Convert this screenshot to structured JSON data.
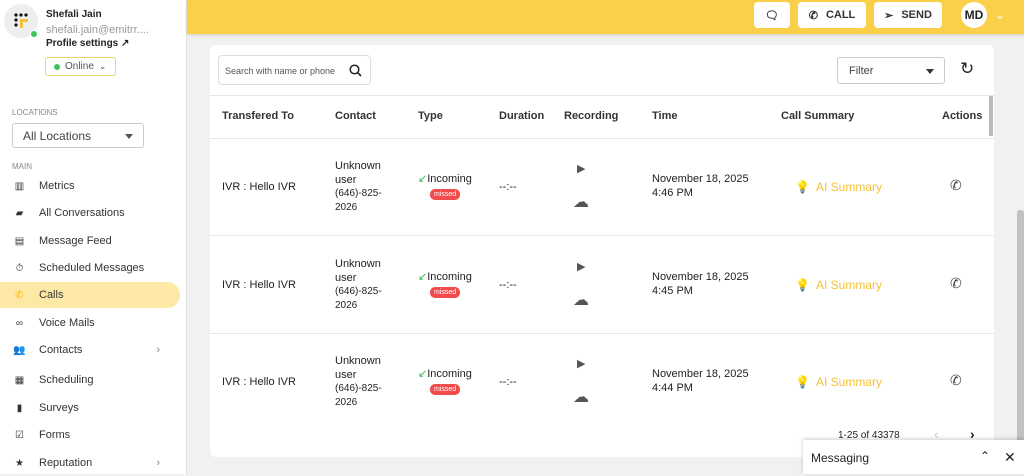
{
  "user": {
    "name": "Shefali Jain",
    "email": "shefali.jain@emitrr....",
    "profile_settings": "Profile settings",
    "status": "Online"
  },
  "sidebar": {
    "locations_label": "LOCATIONS",
    "location_value": "All Locations",
    "main_label": "MAIN",
    "items": [
      {
        "label": "Metrics",
        "icon": "bar-chart-icon"
      },
      {
        "label": "All Conversations",
        "icon": "chat-icon"
      },
      {
        "label": "Message Feed",
        "icon": "message-icon"
      },
      {
        "label": "Scheduled Messages",
        "icon": "timer-icon"
      },
      {
        "label": "Calls",
        "icon": "phone-icon",
        "active": true
      },
      {
        "label": "Voice Mails",
        "icon": "voicemail-icon"
      },
      {
        "label": "Contacts",
        "icon": "people-icon",
        "chevron": true
      },
      {
        "label": "Scheduling",
        "icon": "calendar-icon"
      },
      {
        "label": "Surveys",
        "icon": "document-icon"
      },
      {
        "label": "Forms",
        "icon": "checklist-icon"
      },
      {
        "label": "Reputation",
        "icon": "star-icon",
        "chevron": true
      }
    ]
  },
  "header": {
    "call": "CALL",
    "send": "SEND",
    "avatar": "MD",
    "accent": "#fad04b"
  },
  "toolbar": {
    "search_placeholder": "Search with name or phone",
    "filter": "Filter"
  },
  "table": {
    "columns": [
      "Transfered To",
      "Contact",
      "Type",
      "Duration",
      "Recording",
      "Time",
      "Call Summary",
      "Actions"
    ],
    "rows": [
      {
        "to": "IVR : Hello IVR",
        "contact1": "Unknown",
        "contact2": "user",
        "phone1": "(646)-825-",
        "phone2": "2026",
        "type": "Incoming",
        "badge": "missed",
        "duration": "--:--",
        "date": "November 18, 2025",
        "time": "4:46 PM",
        "summary": "AI Summary"
      },
      {
        "to": "IVR : Hello IVR",
        "contact1": "Unknown",
        "contact2": "user",
        "phone1": "(646)-825-",
        "phone2": "2026",
        "type": "Incoming",
        "badge": "missed",
        "duration": "--:--",
        "date": "November 18, 2025",
        "time": "4:45 PM",
        "summary": "AI Summary"
      },
      {
        "to": "IVR : Hello IVR",
        "contact1": "Unknown",
        "contact2": "user",
        "phone1": "(646)-825-",
        "phone2": "2026",
        "type": "Incoming",
        "badge": "missed",
        "duration": "--:--",
        "date": "November 18, 2025",
        "time": "4:44 PM",
        "summary": "AI Summary"
      }
    ]
  },
  "pagination": {
    "range": "1-25 of 43378"
  },
  "messaging": {
    "label": "Messaging"
  }
}
